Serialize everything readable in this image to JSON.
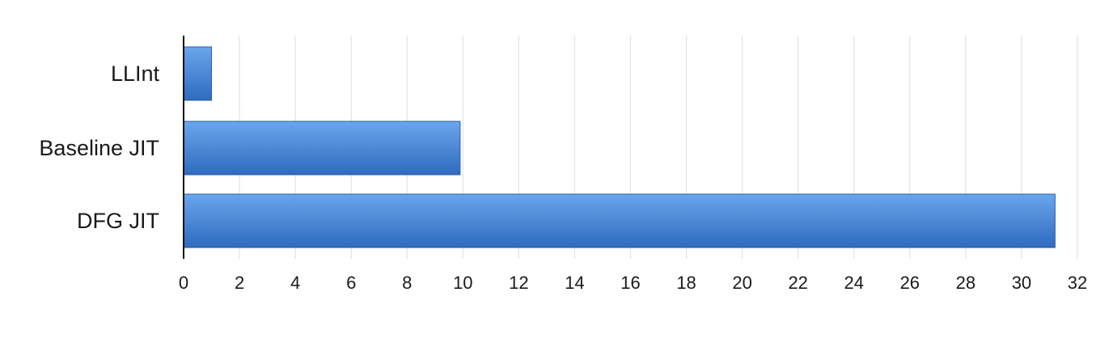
{
  "chart_data": {
    "type": "bar",
    "orientation": "horizontal",
    "categories": [
      "LLInt",
      "Baseline JIT",
      "DFG JIT"
    ],
    "values": [
      1,
      9.9,
      31.2
    ],
    "xlim": [
      0,
      32
    ],
    "xticks": [
      "0",
      "2",
      "4",
      "6",
      "8",
      "10",
      "12",
      "14",
      "16",
      "18",
      "20",
      "22",
      "24",
      "26",
      "28",
      "30",
      "32"
    ],
    "title": "",
    "xlabel": "",
    "ylabel": "",
    "grid": "vertical",
    "legend": "none",
    "colors": {
      "bar_top": "#6aa6ec",
      "bar_bottom": "#2f6bbf",
      "bar_edge": "#2a5fa8",
      "grid": "#e3e3e3",
      "axis": "#111111"
    }
  }
}
